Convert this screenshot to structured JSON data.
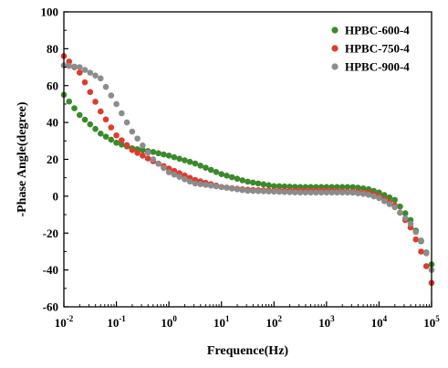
{
  "chart_data": {
    "type": "scatter",
    "xlabel": "Frequence(Hz)",
    "ylabel": "-Phase Angle(degree)",
    "x_scale": "log",
    "xlim": [
      0.01,
      100000
    ],
    "ylim": [
      -60,
      100
    ],
    "x_ticks": [
      {
        "base": "10",
        "exp": "-2"
      },
      {
        "base": "10",
        "exp": "-1"
      },
      {
        "base": "10",
        "exp": "0"
      },
      {
        "base": "10",
        "exp": "1"
      },
      {
        "base": "10",
        "exp": "2"
      },
      {
        "base": "10",
        "exp": "3"
      },
      {
        "base": "10",
        "exp": "4"
      },
      {
        "base": "10",
        "exp": "5"
      }
    ],
    "y_ticks": [
      "-60",
      "-40",
      "-20",
      "0",
      "20",
      "40",
      "60",
      "80",
      "100"
    ],
    "legend_position": "top-right",
    "series": [
      {
        "name": "HPBC-600-4",
        "color": "#3a8a2a",
        "points": [
          [
            0.01,
            55
          ],
          [
            0.02,
            44
          ],
          [
            0.05,
            34
          ],
          [
            0.1,
            29
          ],
          [
            0.2,
            26
          ],
          [
            0.5,
            24
          ],
          [
            1,
            22
          ],
          [
            3,
            18
          ],
          [
            10,
            12
          ],
          [
            30,
            8
          ],
          [
            100,
            5.5
          ],
          [
            300,
            5
          ],
          [
            1000,
            5
          ],
          [
            3000,
            5
          ],
          [
            6000,
            4
          ],
          [
            10000,
            2
          ],
          [
            20000,
            -2
          ],
          [
            40000,
            -13
          ],
          [
            70000,
            -27
          ],
          [
            100000,
            -37
          ]
        ]
      },
      {
        "name": "HPBC-750-4",
        "color": "#e03a2e",
        "points": [
          [
            0.01,
            76
          ],
          [
            0.02,
            67
          ],
          [
            0.05,
            46
          ],
          [
            0.1,
            33
          ],
          [
            0.2,
            25
          ],
          [
            0.5,
            19
          ],
          [
            1,
            15
          ],
          [
            3,
            9
          ],
          [
            10,
            5
          ],
          [
            30,
            3.5
          ],
          [
            100,
            3
          ],
          [
            300,
            3
          ],
          [
            1000,
            3
          ],
          [
            3000,
            2.5
          ],
          [
            6000,
            2
          ],
          [
            10000,
            0
          ],
          [
            20000,
            -5
          ],
          [
            40000,
            -17
          ],
          [
            70000,
            -33
          ],
          [
            100000,
            -47
          ]
        ]
      },
      {
        "name": "HPBC-900-4",
        "color": "#8c8c8c",
        "points": [
          [
            0.01,
            71
          ],
          [
            0.02,
            70
          ],
          [
            0.05,
            64
          ],
          [
            0.1,
            50
          ],
          [
            0.2,
            35
          ],
          [
            0.5,
            20
          ],
          [
            1,
            13
          ],
          [
            3,
            7
          ],
          [
            10,
            5
          ],
          [
            30,
            3
          ],
          [
            100,
            2.5
          ],
          [
            300,
            2
          ],
          [
            1000,
            2
          ],
          [
            3000,
            2
          ],
          [
            6000,
            1
          ],
          [
            10000,
            -1
          ],
          [
            20000,
            -6
          ],
          [
            40000,
            -15
          ],
          [
            70000,
            -26
          ],
          [
            100000,
            -40
          ]
        ]
      }
    ]
  }
}
